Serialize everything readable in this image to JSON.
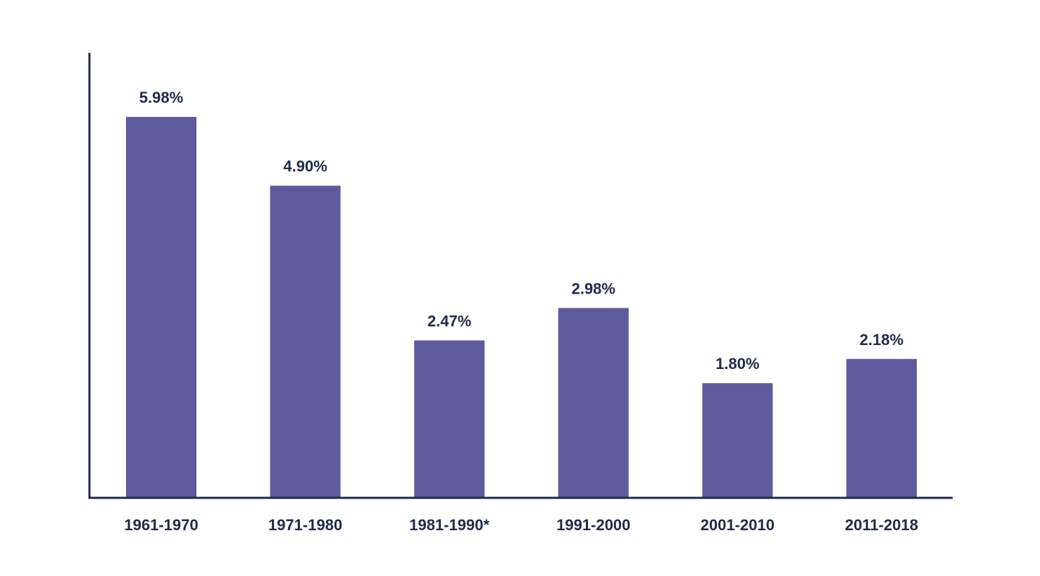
{
  "colors": {
    "bar": "#5d5a9e",
    "axis": "#1e2a4a",
    "text": "#1e2a4a",
    "background": "#ffffff"
  },
  "chart_data": {
    "type": "bar",
    "title": "",
    "xlabel": "",
    "ylabel": "",
    "categories": [
      "1961-1970",
      "1971-1980",
      "1981-1990*",
      "1991-2000",
      "2001-2010",
      "2011-2018"
    ],
    "values": [
      5.98,
      4.9,
      2.47,
      2.98,
      1.8,
      2.18
    ],
    "value_labels": [
      "5.98%",
      "4.90%",
      "2.47%",
      "2.98%",
      "1.80%",
      "2.18%"
    ],
    "ylim": [
      0,
      7
    ],
    "grid": false,
    "legend": "none"
  }
}
